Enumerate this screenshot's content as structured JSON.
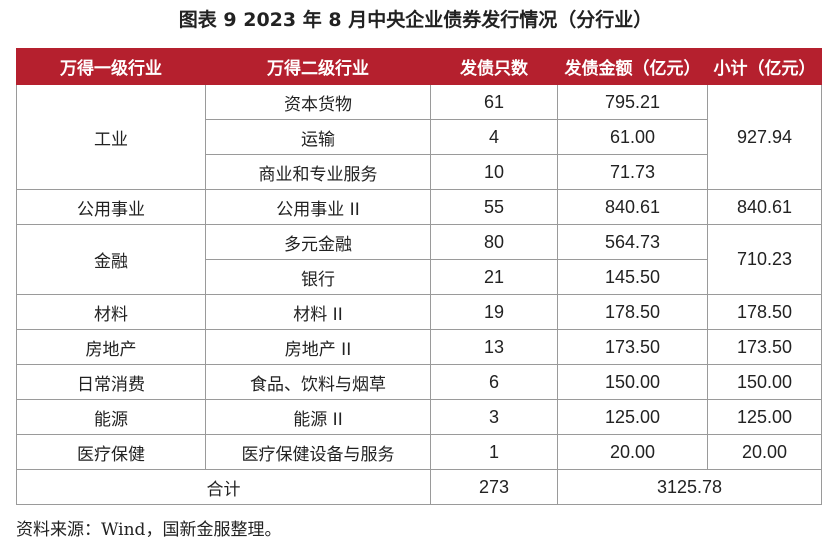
{
  "title": "图表 9  2023 年 8 月中央企业债券发行情况（分行业）",
  "headers": [
    "万得一级行业",
    "万得二级行业",
    "发债只数",
    "发债金额（亿元）",
    "小计（亿元）"
  ],
  "rows": [
    {
      "l1": "工业",
      "l2": "资本货物",
      "count": "61",
      "amount": "795.21",
      "subtotal": "927.94"
    },
    {
      "l1": "",
      "l2": "运输",
      "count": "4",
      "amount": "61.00",
      "subtotal": ""
    },
    {
      "l1": "",
      "l2": "商业和专业服务",
      "count": "10",
      "amount": "71.73",
      "subtotal": ""
    },
    {
      "l1": "公用事业",
      "l2": "公用事业 II",
      "count": "55",
      "amount": "840.61",
      "subtotal": "840.61"
    },
    {
      "l1": "金融",
      "l2": "多元金融",
      "count": "80",
      "amount": "564.73",
      "subtotal": "710.23"
    },
    {
      "l1": "",
      "l2": "银行",
      "count": "21",
      "amount": "145.50",
      "subtotal": ""
    },
    {
      "l1": "材料",
      "l2": "材料 II",
      "count": "19",
      "amount": "178.50",
      "subtotal": "178.50"
    },
    {
      "l1": "房地产",
      "l2": "房地产 II",
      "count": "13",
      "amount": "173.50",
      "subtotal": "173.50"
    },
    {
      "l1": "日常消费",
      "l2": "食品、饮料与烟草",
      "count": "6",
      "amount": "150.00",
      "subtotal": "150.00"
    },
    {
      "l1": "能源",
      "l2": "能源 II",
      "count": "3",
      "amount": "125.00",
      "subtotal": "125.00"
    },
    {
      "l1": "医疗保健",
      "l2": "医疗保健设备与服务",
      "count": "1",
      "amount": "20.00",
      "subtotal": "20.00"
    }
  ],
  "total": {
    "label": "合计",
    "count": "273",
    "amount": "3125.78"
  },
  "source": "资料来源：Wind，国新金服整理。"
}
